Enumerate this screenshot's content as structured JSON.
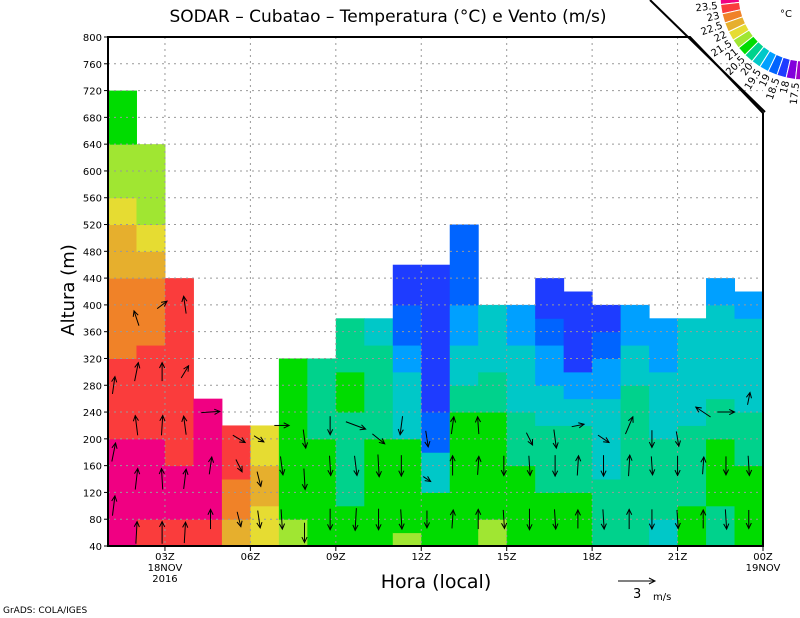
{
  "chart_data": {
    "type": "heatmap",
    "title": "SODAR – Cubatao – Temperatura (°C) e Vento (m/s)",
    "xlabel": "Hora (local)",
    "ylabel": "Altura (m)",
    "xlim": [
      1,
      24
    ],
    "ylim": [
      40,
      800
    ],
    "grid": true,
    "yticks": [
      40,
      80,
      120,
      160,
      200,
      240,
      280,
      320,
      360,
      400,
      440,
      480,
      520,
      560,
      600,
      640,
      680,
      720,
      760,
      800
    ],
    "xticks": [
      {
        "hour": 3,
        "label": "03Z",
        "sub1": "18NOV",
        "sub2": "2016"
      },
      {
        "hour": 6,
        "label": "06Z"
      },
      {
        "hour": 9,
        "label": "09Z"
      },
      {
        "hour": 12,
        "label": "12Z"
      },
      {
        "hour": 15,
        "label": "15Z"
      },
      {
        "hour": 18,
        "label": "18Z"
      },
      {
        "hour": 21,
        "label": "21Z"
      },
      {
        "hour": 24,
        "label": "00Z",
        "sub1": "19NOV"
      }
    ],
    "levels": [
      17.5,
      18,
      18.5,
      19,
      19.5,
      20,
      20.5,
      21,
      21.5,
      22,
      22.5,
      23,
      23.5
    ],
    "level_labels": [
      "17.5",
      "18",
      "18.5",
      "19",
      "19.5",
      "20",
      "20.5",
      "21",
      "21.5",
      "22",
      "22.5",
      "23",
      "23.5"
    ],
    "colors": [
      "#a000c8",
      "#8200dc",
      "#1e3cff",
      "#0064ff",
      "#00a0ff",
      "#00c8c8",
      "#00d28c",
      "#00dc00",
      "#a0e632",
      "#e6dc32",
      "#e6af2d",
      "#f08228",
      "#fa3c3c",
      "#f00082"
    ],
    "legend_unit": "°C",
    "temperature_columns": [
      {
        "hour": 1,
        "top": 720,
        "bands": [
          [
            200,
            23.7
          ],
          [
            320,
            23.2
          ],
          [
            440,
            22.8
          ],
          [
            520,
            22.3
          ],
          [
            560,
            21.8
          ],
          [
            640,
            21.2
          ],
          [
            720,
            20.8
          ]
        ]
      },
      {
        "hour": 2,
        "top": 640,
        "bands": [
          [
            80,
            23.2
          ],
          [
            200,
            23.7
          ],
          [
            340,
            23.2
          ],
          [
            440,
            22.8
          ],
          [
            480,
            22.3
          ],
          [
            520,
            21.8
          ],
          [
            640,
            21.2
          ]
        ]
      },
      {
        "hour": 3,
        "top": 440,
        "bands": [
          [
            80,
            23.2
          ],
          [
            160,
            23.7
          ],
          [
            440,
            23.2
          ]
        ]
      },
      {
        "hour": 4,
        "top": 260,
        "bands": [
          [
            80,
            23.2
          ],
          [
            260,
            23.7
          ]
        ]
      },
      {
        "hour": 5,
        "top": 220,
        "bands": [
          [
            80,
            22.3
          ],
          [
            140,
            22.8
          ],
          [
            220,
            23.2
          ]
        ]
      },
      {
        "hour": 6,
        "top": 220,
        "bands": [
          [
            100,
            21.8
          ],
          [
            160,
            22.3
          ],
          [
            220,
            21.8
          ]
        ]
      },
      {
        "hour": 7,
        "top": 320,
        "bands": [
          [
            80,
            21.2
          ],
          [
            320,
            20.8
          ]
        ]
      },
      {
        "hour": 8,
        "top": 320,
        "bands": [
          [
            200,
            20.8
          ],
          [
            320,
            20.2
          ]
        ]
      },
      {
        "hour": 9,
        "top": 380,
        "bands": [
          [
            100,
            20.8
          ],
          [
            240,
            20.2
          ],
          [
            300,
            20.8
          ],
          [
            380,
            20.2
          ]
        ]
      },
      {
        "hour": 10,
        "top": 380,
        "bands": [
          [
            200,
            20.8
          ],
          [
            340,
            20.2
          ],
          [
            380,
            19.8
          ]
        ]
      },
      {
        "hour": 11,
        "top": 460,
        "bands": [
          [
            60,
            21.2
          ],
          [
            200,
            20.8
          ],
          [
            300,
            19.8
          ],
          [
            340,
            19.2
          ],
          [
            400,
            18.8
          ],
          [
            460,
            18.2
          ]
        ]
      },
      {
        "hour": 12,
        "top": 460,
        "bands": [
          [
            120,
            20.8
          ],
          [
            180,
            19.8
          ],
          [
            240,
            18.8
          ],
          [
            460,
            18.2
          ]
        ]
      },
      {
        "hour": 13,
        "top": 520,
        "bands": [
          [
            240,
            20.8
          ],
          [
            280,
            20.2
          ],
          [
            340,
            19.8
          ],
          [
            400,
            19.2
          ],
          [
            520,
            18.8
          ]
        ]
      },
      {
        "hour": 14,
        "top": 400,
        "bands": [
          [
            80,
            21.2
          ],
          [
            240,
            20.8
          ],
          [
            300,
            20.2
          ],
          [
            400,
            19.8
          ]
        ]
      },
      {
        "hour": 15,
        "top": 400,
        "bands": [
          [
            160,
            20.8
          ],
          [
            240,
            20.2
          ],
          [
            340,
            19.8
          ],
          [
            400,
            19.2
          ]
        ]
      },
      {
        "hour": 16,
        "top": 440,
        "bands": [
          [
            120,
            20.8
          ],
          [
            220,
            20.2
          ],
          [
            280,
            19.8
          ],
          [
            340,
            19.2
          ],
          [
            380,
            18.8
          ],
          [
            440,
            18.2
          ]
        ]
      },
      {
        "hour": 17,
        "top": 420,
        "bands": [
          [
            120,
            20.8
          ],
          [
            220,
            20.2
          ],
          [
            260,
            19.8
          ],
          [
            300,
            19.2
          ],
          [
            420,
            18.2
          ]
        ]
      },
      {
        "hour": 18,
        "top": 400,
        "bands": [
          [
            140,
            20.2
          ],
          [
            260,
            19.8
          ],
          [
            320,
            19.2
          ],
          [
            360,
            18.8
          ],
          [
            400,
            18.2
          ]
        ]
      },
      {
        "hour": 19,
        "top": 400,
        "bands": [
          [
            280,
            20.2
          ],
          [
            340,
            19.8
          ],
          [
            400,
            19.2
          ]
        ]
      },
      {
        "hour": 20,
        "top": 380,
        "bands": [
          [
            80,
            19.8
          ],
          [
            200,
            20.2
          ],
          [
            300,
            19.8
          ],
          [
            380,
            19.2
          ]
        ]
      },
      {
        "hour": 21,
        "top": 380,
        "bands": [
          [
            100,
            20.8
          ],
          [
            220,
            20.2
          ],
          [
            380,
            19.8
          ]
        ]
      },
      {
        "hour": 22,
        "top": 440,
        "bands": [
          [
            100,
            20.2
          ],
          [
            200,
            20.8
          ],
          [
            260,
            20.2
          ],
          [
            400,
            19.8
          ],
          [
            440,
            19.2
          ]
        ]
      },
      {
        "hour": 23,
        "top": 420,
        "bands": [
          [
            160,
            20.8
          ],
          [
            240,
            20.2
          ],
          [
            380,
            19.8
          ],
          [
            420,
            19.2
          ]
        ]
      }
    ],
    "wind_vectors": [
      [
        1.2,
        100,
        0.2,
        1.6
      ],
      [
        1.2,
        180,
        0.3,
        1.5
      ],
      [
        1.2,
        280,
        0.2,
        1.4
      ],
      [
        2.0,
        60,
        0.1,
        1.8
      ],
      [
        2.0,
        140,
        0.2,
        1.7
      ],
      [
        2.0,
        220,
        -0.2,
        1.6
      ],
      [
        2.0,
        300,
        0.3,
        1.5
      ],
      [
        2.0,
        380,
        -0.4,
        1.2
      ],
      [
        2.9,
        60,
        0.0,
        1.8
      ],
      [
        2.9,
        140,
        -0.1,
        1.7
      ],
      [
        2.9,
        220,
        0.1,
        1.6
      ],
      [
        2.9,
        300,
        0.0,
        1.5
      ],
      [
        2.9,
        400,
        0.8,
        0.6
      ],
      [
        3.7,
        60,
        0.1,
        1.7
      ],
      [
        3.7,
        140,
        0.2,
        1.6
      ],
      [
        3.7,
        220,
        -0.2,
        1.5
      ],
      [
        3.7,
        300,
        0.6,
        1.0
      ],
      [
        3.7,
        400,
        -0.2,
        1.4
      ],
      [
        4.6,
        80,
        0.0,
        1.6
      ],
      [
        4.6,
        160,
        0.2,
        1.4
      ],
      [
        4.6,
        240,
        1.5,
        0.1
      ],
      [
        5.6,
        80,
        0.3,
        -1.2
      ],
      [
        5.6,
        160,
        0.5,
        -1.0
      ],
      [
        5.6,
        200,
        1.0,
        -0.6
      ],
      [
        6.3,
        80,
        0.2,
        -1.4
      ],
      [
        6.3,
        140,
        0.3,
        -1.2
      ],
      [
        6.3,
        200,
        0.8,
        -0.5
      ],
      [
        7.1,
        80,
        0.1,
        -1.6
      ],
      [
        7.1,
        160,
        0.2,
        -1.5
      ],
      [
        7.1,
        220,
        1.2,
        0.0
      ],
      [
        7.9,
        60,
        0.0,
        -1.6
      ],
      [
        7.9,
        140,
        0.1,
        -1.7
      ],
      [
        7.9,
        200,
        0.2,
        -1.5
      ],
      [
        8.8,
        80,
        0.0,
        -1.7
      ],
      [
        8.8,
        160,
        0.1,
        -1.6
      ],
      [
        8.8,
        220,
        0.0,
        -1.5
      ],
      [
        9.7,
        80,
        -0.1,
        -1.8
      ],
      [
        9.7,
        160,
        0.2,
        -1.6
      ],
      [
        9.7,
        220,
        1.6,
        -0.6
      ],
      [
        10.5,
        80,
        0.0,
        -1.7
      ],
      [
        10.5,
        160,
        0.1,
        -1.8
      ],
      [
        10.5,
        200,
        1.0,
        -0.8
      ],
      [
        11.3,
        80,
        0.1,
        -1.6
      ],
      [
        11.3,
        160,
        0.0,
        -1.7
      ],
      [
        11.3,
        220,
        -0.2,
        -1.5
      ],
      [
        12.2,
        80,
        0.0,
        -1.4
      ],
      [
        12.2,
        140,
        0.6,
        -0.4
      ],
      [
        12.2,
        200,
        0.2,
        -1.3
      ],
      [
        13.1,
        80,
        0.1,
        1.5
      ],
      [
        13.1,
        160,
        0.0,
        1.6
      ],
      [
        13.1,
        220,
        0.2,
        1.4
      ],
      [
        14.0,
        80,
        0.0,
        1.6
      ],
      [
        14.0,
        160,
        0.1,
        1.5
      ],
      [
        14.0,
        220,
        -0.1,
        1.4
      ],
      [
        14.9,
        80,
        0.1,
        -1.5
      ],
      [
        14.9,
        160,
        0.0,
        -1.6
      ],
      [
        15.8,
        80,
        0.0,
        -1.7
      ],
      [
        15.8,
        160,
        0.1,
        -1.6
      ],
      [
        15.8,
        200,
        0.5,
        -1.0
      ],
      [
        16.7,
        80,
        0.1,
        -1.6
      ],
      [
        16.7,
        160,
        0.0,
        -1.7
      ],
      [
        16.7,
        200,
        0.2,
        -1.5
      ],
      [
        17.5,
        80,
        0.0,
        1.5
      ],
      [
        17.5,
        160,
        0.1,
        1.6
      ],
      [
        17.5,
        220,
        1.0,
        0.2
      ],
      [
        18.4,
        80,
        0.1,
        -1.6
      ],
      [
        18.4,
        160,
        0.0,
        -1.7
      ],
      [
        18.4,
        200,
        0.9,
        -0.6
      ],
      [
        19.3,
        80,
        0.0,
        1.6
      ],
      [
        19.3,
        160,
        0.1,
        1.7
      ],
      [
        19.3,
        220,
        0.6,
        1.4
      ],
      [
        20.1,
        80,
        0.0,
        -1.6
      ],
      [
        20.1,
        160,
        0.1,
        -1.5
      ],
      [
        20.1,
        200,
        0.0,
        -1.4
      ],
      [
        21.0,
        80,
        0.1,
        -1.5
      ],
      [
        21.0,
        160,
        0.0,
        -1.6
      ],
      [
        21.0,
        200,
        0.2,
        -1.2
      ],
      [
        21.9,
        80,
        0.0,
        1.5
      ],
      [
        21.9,
        160,
        0.1,
        1.4
      ],
      [
        21.9,
        240,
        -1.2,
        0.8
      ],
      [
        22.7,
        80,
        0.1,
        -1.6
      ],
      [
        22.7,
        160,
        0.0,
        -1.5
      ],
      [
        22.7,
        240,
        1.4,
        0.0
      ],
      [
        23.5,
        80,
        0.0,
        -1.5
      ],
      [
        23.5,
        160,
        0.1,
        -1.6
      ],
      [
        23.5,
        260,
        0.2,
        1.0
      ]
    ],
    "wind_reference": {
      "value": 3,
      "label": "3",
      "unit": "m/s"
    }
  },
  "footer": "GrADS: COLA/IGES"
}
